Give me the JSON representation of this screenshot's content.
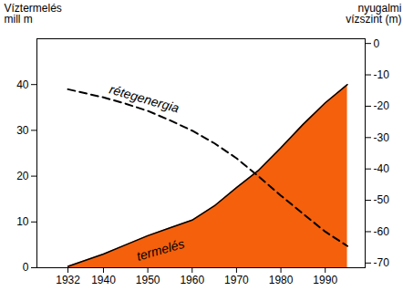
{
  "chart_data": {
    "type": "line",
    "ylabel": "Víztermelés mill m",
    "y2label": "nyugalmi vízszint (m)",
    "x": [
      1932,
      1940,
      1945,
      1950,
      1955,
      1960,
      1965,
      1970,
      1975,
      1980,
      1985,
      1990,
      1995
    ],
    "series": [
      {
        "name": "termelés",
        "type": "area",
        "color": "#f4600c",
        "values": [
          0.3,
          3,
          5,
          7,
          8.7,
          10.4,
          13.5,
          17.5,
          21.3,
          26.2,
          31.3,
          36,
          40
        ]
      },
      {
        "name": "rétegenergia",
        "type": "line",
        "line_style": "dashed",
        "color": "#000000",
        "axis": "y2",
        "values": [
          -14.6,
          -17.2,
          -19.2,
          -21.5,
          -24.5,
          -27.8,
          -31.8,
          -36.6,
          -42.4,
          -48.5,
          -54.3,
          -60,
          -64.6
        ]
      }
    ],
    "xlim": [
      1925,
      1999
    ],
    "xticks": [
      1932,
      1940,
      1950,
      1960,
      1970,
      1980,
      1990
    ],
    "ylim": [
      0,
      50
    ],
    "yticks": [
      0,
      10,
      20,
      30,
      40
    ],
    "y2lim": [
      -71.5,
      1.5
    ],
    "y2ticks": [
      0,
      -10,
      -20,
      -30,
      -40,
      -50,
      -60,
      -70
    ],
    "grid": false
  }
}
